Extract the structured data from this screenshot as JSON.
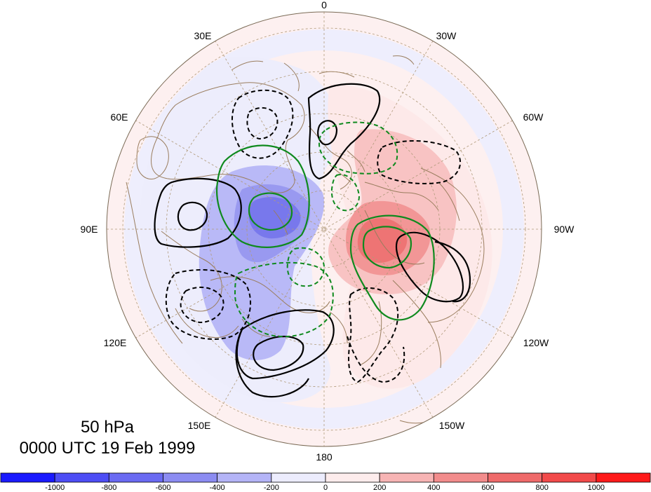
{
  "title": {
    "level": "50 hPa",
    "datetime": "0000 UTC 19 Feb 1999"
  },
  "longitude_labels": [
    "0",
    "30W",
    "60W",
    "90W",
    "120W",
    "150W",
    "180",
    "150E",
    "120E",
    "90E",
    "60E",
    "30E"
  ],
  "colorbar": {
    "ticks": [
      "-1000",
      "-800",
      "-600",
      "-400",
      "-200",
      "0",
      "200",
      "400",
      "600",
      "800",
      "1000"
    ],
    "colors": [
      "#1a1aff",
      "#4d4df5",
      "#6a6af2",
      "#8c8cf2",
      "#b4b4f7",
      "#ececfd",
      "#fdecec",
      "#f7b4b4",
      "#f28c8c",
      "#ef6a6a",
      "#f24a4a",
      "#ff1a1a"
    ]
  },
  "colors": {
    "coast": "#9a7d5e",
    "grid": "#b09a7a",
    "positive_contour": "#000000",
    "negative_contour": "#000000",
    "anomaly_contour": "#0f8a1e"
  }
}
